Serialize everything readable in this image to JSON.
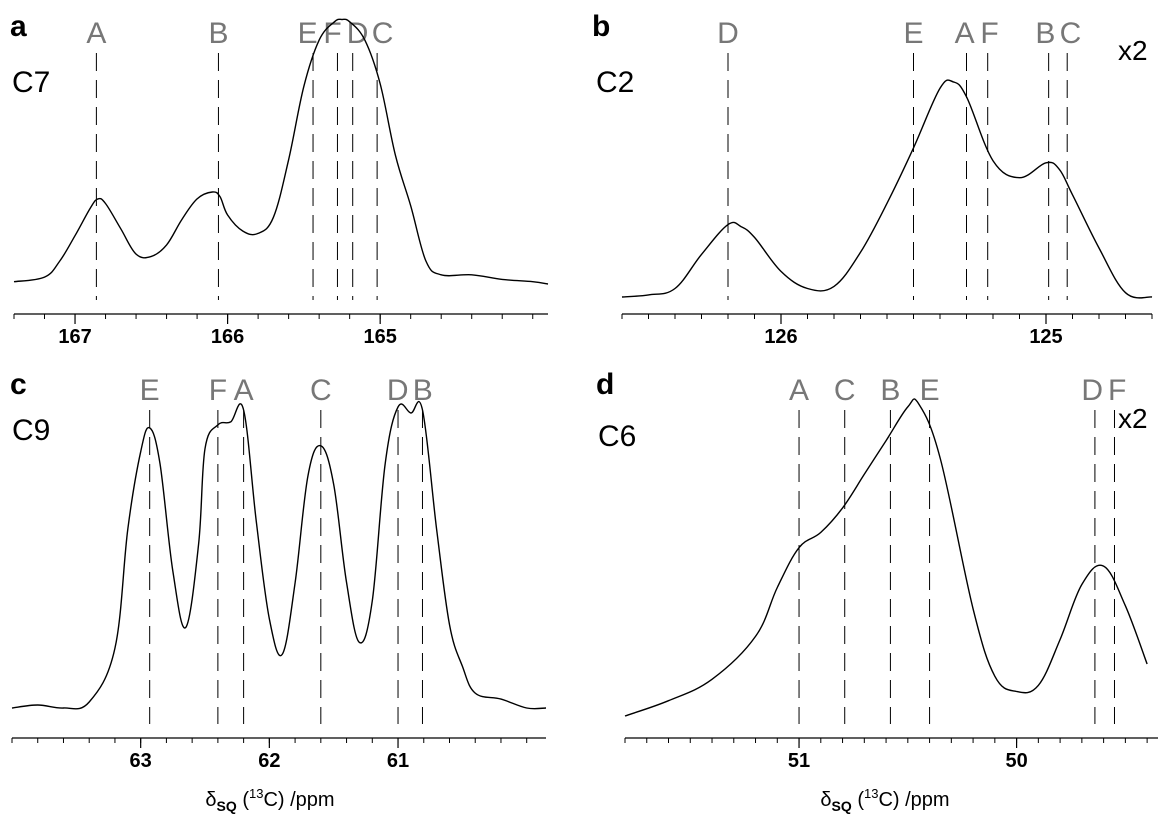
{
  "colors": {
    "site_label": "#777777",
    "line": "#000000"
  },
  "xlabel": {
    "delta": "δ",
    "sub": "SQ",
    "pre": " (",
    "sup": "13",
    "post": "C) /ppm"
  },
  "chart_data": [
    {
      "type": "line",
      "panel": "a",
      "nucleus": "C7",
      "scale": "",
      "xlim": [
        167.4,
        163.9
      ],
      "major_ticks": [
        167,
        166,
        165
      ],
      "minor_step": 0.2,
      "tick_labels": [
        "167",
        "166",
        "165"
      ],
      "sites": [
        {
          "label": "A",
          "ppm": 166.86
        },
        {
          "label": "B",
          "ppm": 166.06
        },
        {
          "label": "E",
          "ppm": 165.44
        },
        {
          "label": "F",
          "ppm": 165.28
        },
        {
          "label": "D",
          "ppm": 165.18
        },
        {
          "label": "C",
          "ppm": 165.02
        }
      ],
      "series": [
        {
          "x": [
            167.4,
            167.2,
            167.1,
            167.0,
            166.9,
            166.85,
            166.8,
            166.7,
            166.6,
            166.5,
            166.4,
            166.3,
            166.2,
            166.1,
            166.05,
            166.0,
            165.9,
            165.8,
            165.7,
            165.6,
            165.5,
            165.4,
            165.3,
            165.25,
            165.2,
            165.1,
            165.0,
            164.9,
            164.8,
            164.7,
            164.6,
            164.4,
            164.2,
            164.0,
            163.9
          ],
          "y": [
            0.01,
            0.03,
            0.1,
            0.21,
            0.33,
            0.37,
            0.35,
            0.24,
            0.13,
            0.12,
            0.17,
            0.28,
            0.37,
            0.4,
            0.38,
            0.3,
            0.23,
            0.22,
            0.29,
            0.54,
            0.86,
            1.06,
            1.14,
            1.15,
            1.14,
            1.06,
            0.87,
            0.56,
            0.34,
            0.1,
            0.04,
            0.04,
            0.02,
            0.01,
            0.0
          ]
        }
      ]
    },
    {
      "type": "line",
      "panel": "b",
      "nucleus": "C2",
      "scale": "x2",
      "xlim": [
        126.6,
        124.6
      ],
      "major_ticks": [
        126,
        125
      ],
      "minor_step": 0.1,
      "tick_labels": [
        "126",
        "125"
      ],
      "sites": [
        {
          "label": "D",
          "ppm": 126.2
        },
        {
          "label": "E",
          "ppm": 125.5
        },
        {
          "label": "A",
          "ppm": 125.3
        },
        {
          "label": "F",
          "ppm": 125.22
        },
        {
          "label": "B",
          "ppm": 124.99
        },
        {
          "label": "C",
          "ppm": 124.92
        }
      ],
      "series": [
        {
          "x": [
            126.6,
            126.5,
            126.4,
            126.3,
            126.2,
            126.15,
            126.1,
            126.0,
            125.9,
            125.8,
            125.7,
            125.6,
            125.5,
            125.4,
            125.35,
            125.3,
            125.2,
            125.1,
            125.0,
            124.95,
            124.9,
            124.8,
            124.7,
            124.6
          ],
          "y": [
            0.0,
            0.01,
            0.04,
            0.2,
            0.34,
            0.33,
            0.28,
            0.12,
            0.04,
            0.05,
            0.21,
            0.44,
            0.7,
            0.98,
            1.01,
            0.94,
            0.64,
            0.56,
            0.63,
            0.6,
            0.48,
            0.23,
            0.02,
            0.0
          ]
        }
      ]
    },
    {
      "type": "line",
      "panel": "c",
      "nucleus": "C9",
      "scale": "",
      "xlim": [
        64.0,
        59.85
      ],
      "major_ticks": [
        63,
        62,
        61
      ],
      "minor_step": 0.2,
      "tick_labels": [
        "63",
        "62",
        "61"
      ],
      "sites": [
        {
          "label": "E",
          "ppm": 62.93
        },
        {
          "label": "F",
          "ppm": 62.4
        },
        {
          "label": "A",
          "ppm": 62.2
        },
        {
          "label": "C",
          "ppm": 61.6
        },
        {
          "label": "D",
          "ppm": 61.0
        },
        {
          "label": "B",
          "ppm": 60.81
        }
      ],
      "series": [
        {
          "x": [
            64.0,
            63.8,
            63.6,
            63.4,
            63.2,
            63.1,
            63.0,
            62.93,
            62.85,
            62.75,
            62.65,
            62.55,
            62.5,
            62.4,
            62.3,
            62.2,
            62.1,
            62.0,
            61.9,
            61.8,
            61.7,
            61.6,
            61.5,
            61.4,
            61.3,
            61.2,
            61.1,
            61.0,
            60.9,
            60.81,
            60.7,
            60.6,
            60.5,
            60.4,
            60.2,
            60.0,
            59.85
          ],
          "y": [
            0.0,
            0.01,
            0.0,
            0.02,
            0.2,
            0.6,
            0.86,
            0.94,
            0.82,
            0.46,
            0.27,
            0.55,
            0.87,
            0.95,
            0.96,
            1.0,
            0.62,
            0.3,
            0.18,
            0.42,
            0.78,
            0.88,
            0.75,
            0.42,
            0.22,
            0.36,
            0.82,
            1.01,
            0.99,
            1.0,
            0.6,
            0.28,
            0.14,
            0.05,
            0.03,
            0.0,
            0.0
          ]
        }
      ]
    },
    {
      "type": "line",
      "panel": "d",
      "nucleus": "C6",
      "scale": "x2",
      "xlim": [
        51.8,
        49.35
      ],
      "major_ticks": [
        51,
        50
      ],
      "minor_step": 0.1,
      "tick_labels": [
        "51",
        "50"
      ],
      "sites": [
        {
          "label": "A",
          "ppm": 51.0
        },
        {
          "label": "C",
          "ppm": 50.79
        },
        {
          "label": "B",
          "ppm": 50.58
        },
        {
          "label": "E",
          "ppm": 50.4
        },
        {
          "label": "D",
          "ppm": 49.64
        },
        {
          "label": "F",
          "ppm": 49.55
        }
      ],
      "series": [
        {
          "x": [
            51.8,
            51.6,
            51.4,
            51.2,
            51.1,
            51.0,
            50.9,
            50.8,
            50.7,
            50.6,
            50.5,
            50.45,
            50.35,
            50.2,
            50.1,
            50.0,
            49.9,
            49.8,
            49.7,
            49.6,
            49.5,
            49.4
          ],
          "y": [
            0.0,
            0.05,
            0.12,
            0.26,
            0.42,
            0.55,
            0.6,
            0.68,
            0.79,
            0.9,
            1.01,
            1.02,
            0.84,
            0.35,
            0.13,
            0.08,
            0.1,
            0.25,
            0.43,
            0.49,
            0.36,
            0.17
          ]
        }
      ]
    }
  ]
}
